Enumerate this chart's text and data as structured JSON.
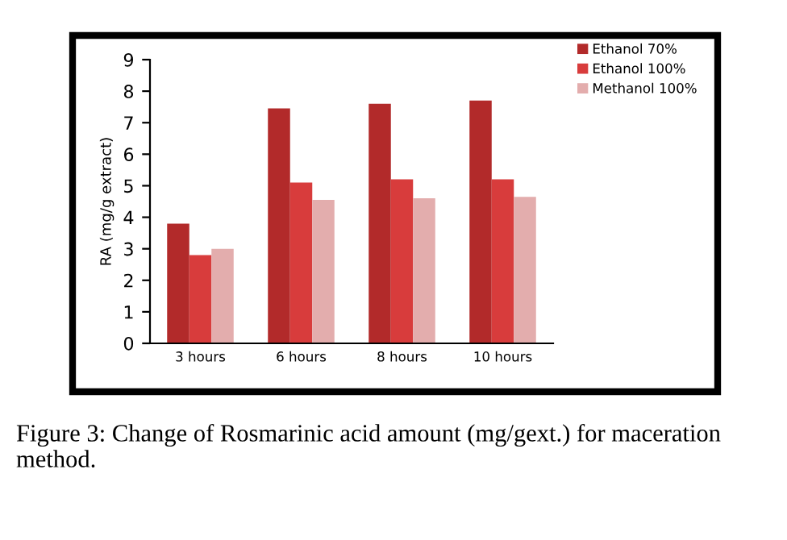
{
  "chart_data": {
    "type": "bar",
    "ylabel": "RA (mg/g extract)",
    "categories": [
      "3 hours",
      "6 hours",
      "8 hours",
      "10 hours"
    ],
    "series": [
      {
        "name": "Ethanol 70%",
        "color": "#b22a2a",
        "values": [
          3.8,
          7.45,
          7.6,
          7.7
        ]
      },
      {
        "name": "Ethanol 100%",
        "color": "#d83c3c",
        "values": [
          2.8,
          5.1,
          5.2,
          5.2
        ]
      },
      {
        "name": "Methanol 100%",
        "color": "#e3adad",
        "values": [
          3.0,
          4.55,
          4.6,
          4.65
        ]
      }
    ],
    "ylim": [
      0,
      9
    ],
    "yticks": [
      0,
      1,
      2,
      3,
      4,
      5,
      6,
      7,
      8,
      9
    ],
    "grid": false,
    "legend": "top right",
    "annotations": [
      "Figure 3: Change of Rosmarinic acid amount (mg/gext.) for maceration method."
    ]
  }
}
